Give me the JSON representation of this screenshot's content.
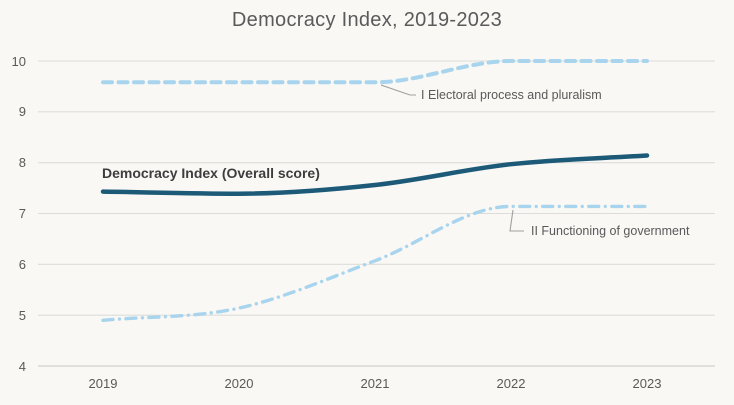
{
  "chart_data": {
    "type": "line",
    "title": "Democracy Index, 2019-2023",
    "xlabel": "",
    "ylabel": "",
    "categories": [
      "2019",
      "2020",
      "2021",
      "2022",
      "2023"
    ],
    "yticks": [
      4,
      5,
      6,
      7,
      8,
      9,
      10
    ],
    "ylim": [
      4,
      10
    ],
    "grid": true,
    "legend_position": "inline-labels",
    "series": [
      {
        "name": "Democracy Index (Overall score)",
        "values": [
          7.43,
          7.39,
          7.56,
          7.97,
          8.14
        ],
        "color": "#1c5a78",
        "style": "solid"
      },
      {
        "name": "I Electoral process and pluralism",
        "values": [
          9.58,
          9.58,
          9.58,
          10.0,
          10.0
        ],
        "color": "#a8d4ee",
        "style": "dashed"
      },
      {
        "name": "II Functioning of government",
        "values": [
          4.9,
          5.14,
          6.07,
          7.14,
          7.14
        ],
        "color": "#a8d4ee",
        "style": "dash-dot"
      }
    ]
  },
  "colors": {
    "background": "#f9f8f5",
    "gridline": "#dcdcda",
    "axis_line": "#c8c8c6",
    "tick_text": "#595959",
    "title_text": "#5a5a5a",
    "overall_label_text": "#3d3d3d",
    "callout_line": "#a0a0a0"
  }
}
